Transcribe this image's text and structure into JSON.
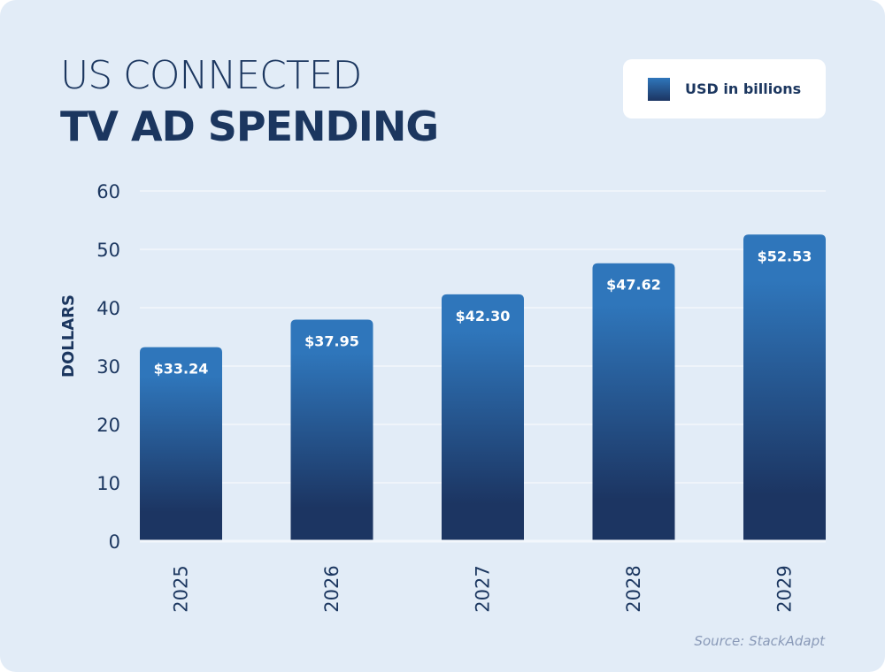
{
  "title_line1": "US CONNECTED",
  "title_line2": "TV AD SPENDING",
  "source": "Source: StackAdapt",
  "colors": {
    "background": "#e2ecf7",
    "text": "#1b365f",
    "bar_top": "#2f76bb",
    "bar_bottom": "#1c3562"
  },
  "chart_data": {
    "type": "bar",
    "categories": [
      "2025",
      "2026",
      "2027",
      "2028",
      "2029"
    ],
    "series": [
      {
        "name": "USD in billions",
        "values": [
          33.24,
          37.95,
          42.3,
          47.62,
          52.53
        ]
      }
    ],
    "data_labels": [
      "$33.24",
      "$37.95",
      "$42.30",
      "$47.62",
      "$52.53"
    ],
    "ylabel": "DOLLARS",
    "xlabel": "",
    "ylim": [
      0,
      60
    ],
    "yticks": [
      "0",
      "10",
      "20",
      "30",
      "40",
      "50",
      "60"
    ],
    "grid": true,
    "legend_position": "top-right"
  }
}
